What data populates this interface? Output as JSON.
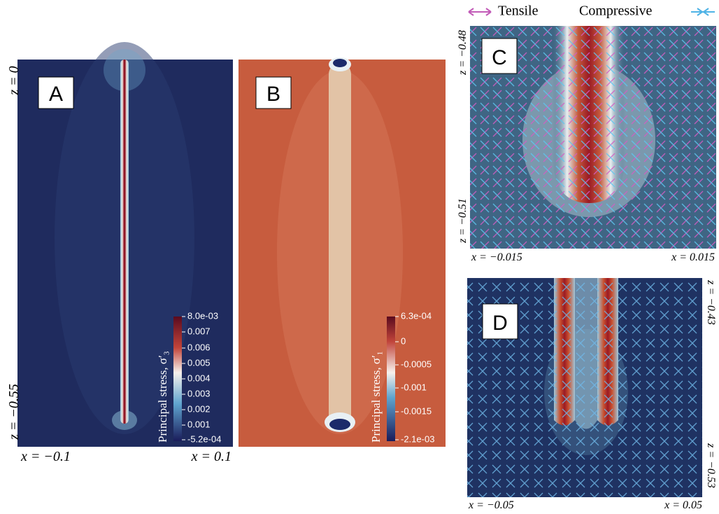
{
  "legend": {
    "tensile": "Tensile",
    "compressive": "Compressive"
  },
  "panels": [
    {
      "label": "A",
      "z_top": "z = 0",
      "z_bottom": "z = −0.55",
      "x_left": "x = −0.1",
      "x_right": "x = 0.1",
      "colorbar": {
        "title": "Principal stress, σ′₃",
        "ticks": [
          "8.0e-03",
          "0.007",
          "0.006",
          "0.005",
          "0.004",
          "0.003",
          "0.002",
          "0.001",
          "-5.2e-04"
        ]
      }
    },
    {
      "label": "B",
      "colorbar": {
        "title": "Principal stress, σ′₁",
        "ticks": [
          "6.3e-04",
          "0",
          "-0.0005",
          "-0.001",
          "-0.0015",
          "-2.1e-03"
        ]
      }
    },
    {
      "label": "C",
      "z_top": "z = −0.48",
      "z_bottom": "z = −0.51",
      "x_left": "x = −0.015",
      "x_right": "x = 0.015"
    },
    {
      "label": "D",
      "z_top": "z = −0.43",
      "z_bottom": "z = −0.53",
      "x_left": "x = −0.05",
      "x_right": "x = 0.05"
    }
  ]
}
